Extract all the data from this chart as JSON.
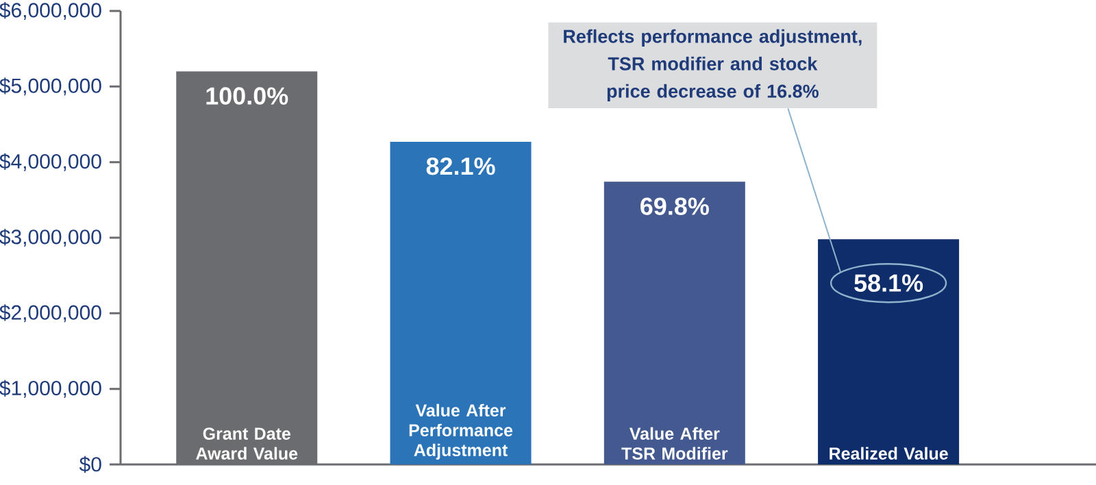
{
  "chart_data": {
    "type": "bar",
    "categories": [
      "Grant Date Award Value",
      "Value After Performance Adjustment",
      "Value After TSR Modifier",
      "Realized Value"
    ],
    "values": [
      5200000,
      4270000,
      3740000,
      2980000
    ],
    "colors": [
      "#6b6c70",
      "#2b74b8",
      "#44598f",
      "#0f2d6b"
    ],
    "ylim": [
      0,
      6000000
    ],
    "yticks": [
      {
        "value": 0,
        "label": "$0"
      },
      {
        "value": 1000000,
        "label": "$1,000,000"
      },
      {
        "value": 2000000,
        "label": "$2,000,000"
      },
      {
        "value": 3000000,
        "label": "$3,000,000"
      },
      {
        "value": 4000000,
        "label": "$4,000,000"
      },
      {
        "value": 5000000,
        "label": "$5,000,000"
      },
      {
        "value": 6000000,
        "label": "$6,000,000"
      }
    ],
    "annotations": [
      {
        "text": "100.0%",
        "x": "Grant Date Award Value",
        "y": 5200000
      },
      {
        "text": "82.1%",
        "x": "Value After Performance Adjustment",
        "y": 4270000
      },
      {
        "text": "69.8%",
        "x": "Value After TSR Modifier",
        "y": 3740000
      },
      {
        "text": "58.1%",
        "x": "Realized Value",
        "y": 2980000
      },
      "Reflects performance adjustment, TSR modifier and stock price decrease of 16.8%"
    ],
    "grid": false
  }
}
